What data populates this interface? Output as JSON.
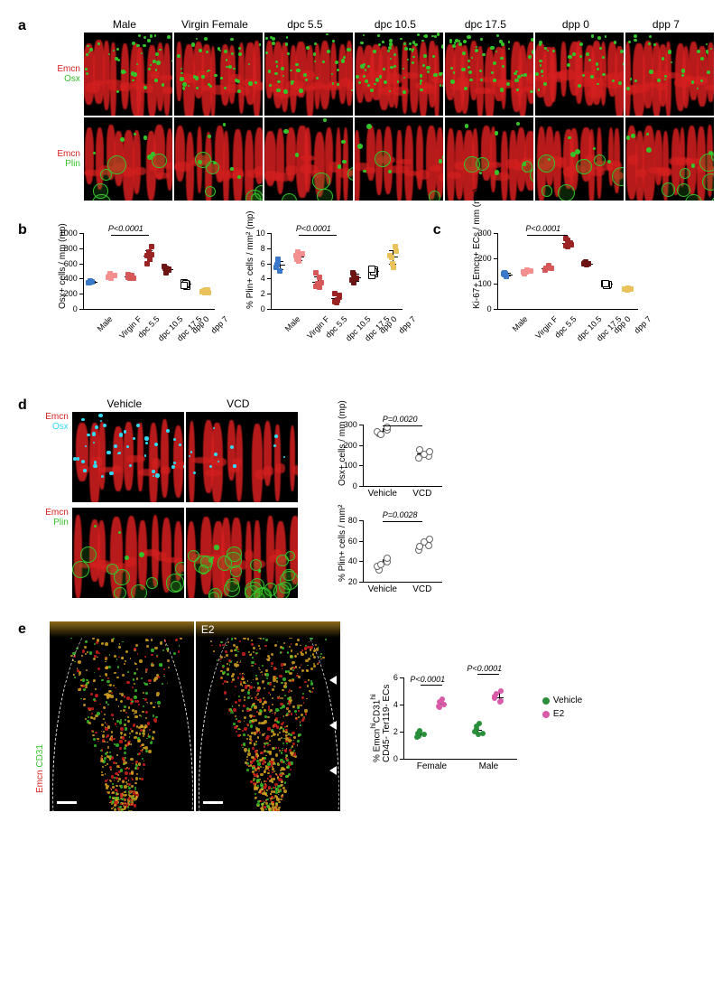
{
  "colors": {
    "black": "#000000",
    "red": "#d61f1f",
    "green": "#36c229",
    "cyan": "#35d8f2",
    "yellow": "#e8d24a",
    "white": "#ffffff",
    "male": "#3a78c9",
    "virginf": "#f48f8f",
    "dpc55": "#d65858",
    "dpc105": "#9a2323",
    "dpc175": "#6d1414",
    "dpp0_fill": "#ffffff",
    "dpp0_stroke": "#000000",
    "dpp7": "#e9c25b",
    "vehicle_dot": "#2a8f3b",
    "e2_dot": "#d85aa8"
  },
  "panel_a": {
    "columns": [
      "Male",
      "Virgin Female",
      "dpc 5.5",
      "dpc 10.5",
      "dpc 17.5",
      "dpp 0",
      "dpp 7"
    ],
    "row1_label_red": "Emcn",
    "row1_label_green": "Osx",
    "row2_label_red": "Emcn",
    "row2_label_green": "Plin"
  },
  "panel_b1": {
    "ylabel": "Osx+ cells / mm (mp)",
    "ylim": [
      0,
      1000
    ],
    "ytick_step": 200,
    "pvalue": "P<0.0001",
    "categories": [
      "Male",
      "Virgin F",
      "dpc 5.5",
      "dpc 10.5",
      "dpc 17.5",
      "dpp 0",
      "dpp 7"
    ],
    "series": [
      {
        "color": "#3a78c9",
        "values": [
          350,
          360,
          345,
          370,
          355
        ]
      },
      {
        "color": "#f48f8f",
        "values": [
          430,
          420,
          445,
          410,
          460,
          425
        ]
      },
      {
        "color": "#d65858",
        "values": [
          420,
          410,
          440,
          430,
          455,
          405
        ]
      },
      {
        "color": "#9a2323",
        "values": [
          600,
          720,
          750,
          820,
          700,
          650
        ]
      },
      {
        "color": "#6d1414",
        "values": [
          480,
          520,
          540,
          560,
          530,
          510
        ]
      },
      {
        "color": "#ffffff",
        "stroke": "#000",
        "values": [
          310,
          330,
          360,
          340,
          320
        ]
      },
      {
        "color": "#e9c25b",
        "values": [
          220,
          240,
          210,
          250,
          230,
          245
        ]
      }
    ]
  },
  "panel_b2": {
    "ylabel": "% Plin+ cells / mm² (mp)",
    "ylim": [
      0,
      10
    ],
    "ytick_step": 2,
    "pvalue": "P<0.0001",
    "categories": [
      "Male",
      "Virgin F",
      "dpc 5.5",
      "dpc 10.5",
      "dpc 17.5",
      "dpp 0",
      "dpp 7"
    ],
    "series": [
      {
        "color": "#3a78c9",
        "values": [
          5.8,
          6.2,
          5.5,
          6.5,
          5.0
        ]
      },
      {
        "color": "#f48f8f",
        "values": [
          6.5,
          7.0,
          7.3,
          6.8,
          7.5,
          6.3
        ]
      },
      {
        "color": "#d65858",
        "values": [
          3.0,
          3.5,
          4.2,
          2.8,
          4.8,
          3.3
        ]
      },
      {
        "color": "#9a2323",
        "values": [
          1.0,
          1.5,
          0.8,
          1.8,
          2.0,
          1.2
        ]
      },
      {
        "color": "#6d1414",
        "values": [
          3.5,
          4.0,
          4.5,
          3.8,
          4.8
        ]
      },
      {
        "color": "#ffffff",
        "stroke": "#000",
        "values": [
          4.8,
          5.2,
          4.5,
          5.0,
          5.4
        ]
      },
      {
        "color": "#e9c25b",
        "values": [
          6.0,
          6.8,
          7.6,
          5.5,
          7.0,
          8.2
        ]
      }
    ]
  },
  "panel_c": {
    "ylabel": "Ki-67+ Emcn+ ECs / mm (mp)",
    "ylim": [
      0,
      300
    ],
    "ytick_step": 100,
    "pvalue": "P<0.0001",
    "categories": [
      "Male",
      "Virgin F",
      "dpc 5.5",
      "dpc 10.5",
      "dpc 17.5",
      "dpp 0",
      "dpp 7"
    ],
    "series": [
      {
        "color": "#3a78c9",
        "values": [
          135,
          140,
          138,
          142,
          130
        ]
      },
      {
        "color": "#f48f8f",
        "values": [
          140,
          145,
          150,
          155,
          148
        ]
      },
      {
        "color": "#d65858",
        "values": [
          155,
          160,
          165,
          170,
          162
        ]
      },
      {
        "color": "#9a2323",
        "values": [
          250,
          260,
          270,
          255,
          280,
          245
        ]
      },
      {
        "color": "#6d1414",
        "values": [
          175,
          180,
          185,
          178,
          182
        ]
      },
      {
        "color": "#ffffff",
        "stroke": "#000",
        "values": [
          95,
          100,
          105,
          98,
          102
        ]
      },
      {
        "color": "#e9c25b",
        "values": [
          75,
          80,
          78,
          82,
          77
        ]
      }
    ]
  },
  "panel_d": {
    "col_labels": [
      "Vehicle",
      "VCD"
    ],
    "row1_red": "Emcn",
    "row1_cyan": "Osx",
    "row2_red": "Emcn",
    "row2_green": "Plin",
    "chart1": {
      "ylabel": "Osx+ cells / mm (mp)",
      "ylim": [
        0,
        300
      ],
      "ytick_step": 100,
      "pvalue": "P=0.0020",
      "categories": [
        "Vehicle",
        "VCD"
      ],
      "series": [
        {
          "color": "#888888",
          "values": [
            260,
            270,
            280,
            290,
            255
          ]
        },
        {
          "color": "#888888",
          "values": [
            140,
            150,
            160,
            170,
            180
          ]
        }
      ]
    },
    "chart2": {
      "ylabel": "% Plin+ cells / mm²",
      "ylim": [
        20,
        80
      ],
      "ytick_step": 20,
      "pvalue": "P=0.0028",
      "categories": [
        "Vehicle",
        "VCD"
      ],
      "series": [
        {
          "color": "#888888",
          "values": [
            32,
            36,
            40,
            44,
            38
          ]
        },
        {
          "color": "#888888",
          "values": [
            52,
            56,
            60,
            62,
            55
          ]
        }
      ]
    }
  },
  "panel_e": {
    "col_labels": [
      "",
      "E2"
    ],
    "y_red": "Emcn",
    "y_green": "CD31",
    "chart": {
      "ylabel": "% Emcnhi CD31hi\nCD45- Ter119- ECs",
      "ylabel_html": "% Emcn<sup>hi</sup>CD31<sup>hi</sup><br>CD45- Ter119- ECs",
      "ylim": [
        0,
        6
      ],
      "ytick_step": 2,
      "pvalues": [
        "P<0.0001",
        "P<0.0001"
      ],
      "xcats": [
        "Female",
        "Male"
      ],
      "legend": [
        {
          "label": "Vehicle",
          "color": "#2a8f3b"
        },
        {
          "label": "E2",
          "color": "#d85aa8"
        }
      ],
      "groups": [
        {
          "x": "Female",
          "series": [
            {
              "color": "#2a8f3b",
              "values": [
                1.6,
                1.8,
                2.0,
                1.7,
                1.9,
                2.1
              ]
            },
            {
              "color": "#d85aa8",
              "values": [
                3.8,
                4.0,
                4.2,
                4.4,
                3.9,
                4.3
              ]
            }
          ]
        },
        {
          "x": "Male",
          "series": [
            {
              "color": "#2a8f3b",
              "values": [
                1.8,
                2.0,
                2.2,
                2.4,
                2.6,
                1.9
              ]
            },
            {
              "color": "#d85aa8",
              "values": [
                4.2,
                4.5,
                4.8,
                5.0,
                4.3,
                4.6
              ]
            }
          ]
        }
      ]
    }
  }
}
